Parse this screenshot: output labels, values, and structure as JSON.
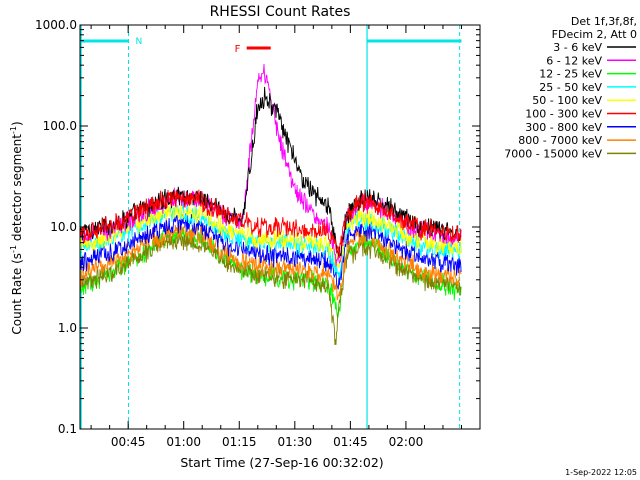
{
  "chart_data": {
    "type": "line",
    "title": "RHESSI Count Rates",
    "xlabel": "Start Time (27-Sep-16 00:32:02)",
    "ylabel_main": "Count Rate (s",
    "ylabel_exp": "-1",
    "ylabel_tail": " detector segment",
    "ylabel_exp2": "-1",
    "ylabel_close": ")",
    "xlim_minutes": [
      0,
      108
    ],
    "yscale": "log",
    "ylim": [
      0.1,
      1000
    ],
    "y_ticks": [
      {
        "value": 0.1,
        "label": "0.1"
      },
      {
        "value": 1,
        "label": "1.0"
      },
      {
        "value": 10,
        "label": "10.0"
      },
      {
        "value": 100,
        "label": "100.0"
      },
      {
        "value": 1000,
        "label": "1000.0"
      }
    ],
    "x_ticks": [
      {
        "value": 13,
        "label": "00:45"
      },
      {
        "value": 28,
        "label": "01:00"
      },
      {
        "value": 43,
        "label": "01:15"
      },
      {
        "value": 58,
        "label": "01:30"
      },
      {
        "value": 73,
        "label": "01:45"
      },
      {
        "value": 88,
        "label": "02:00"
      }
    ],
    "legend_header": [
      "Det 1f,3f,8f,",
      "FDecim 2, Att 0"
    ],
    "series": [
      {
        "name": "3 - 6 keV",
        "color": "#000000",
        "points": [
          [
            0,
            8.8
          ],
          [
            10,
            11
          ],
          [
            20,
            17
          ],
          [
            27,
            21
          ],
          [
            33,
            19
          ],
          [
            40,
            13
          ],
          [
            44,
            12
          ],
          [
            46,
            40
          ],
          [
            48,
            160
          ],
          [
            50,
            200
          ],
          [
            53,
            140
          ],
          [
            56,
            70
          ],
          [
            60,
            30
          ],
          [
            64,
            20
          ],
          [
            67,
            16
          ],
          [
            70,
            5
          ],
          [
            72,
            13
          ],
          [
            76,
            19
          ],
          [
            80,
            18
          ],
          [
            86,
            14
          ],
          [
            92,
            10
          ],
          [
            103,
            8.5
          ]
        ]
      },
      {
        "name": "6 - 12 keV",
        "color": "#ff00ff",
        "points": [
          [
            0,
            7.8
          ],
          [
            10,
            10
          ],
          [
            20,
            16
          ],
          [
            27,
            20
          ],
          [
            33,
            18
          ],
          [
            40,
            12
          ],
          [
            44,
            11
          ],
          [
            46,
            60
          ],
          [
            48,
            270
          ],
          [
            49.5,
            370
          ],
          [
            51,
            250
          ],
          [
            53,
            100
          ],
          [
            56,
            40
          ],
          [
            59,
            20
          ],
          [
            62,
            15
          ],
          [
            65,
            12
          ],
          [
            67,
            10
          ],
          [
            70,
            4
          ],
          [
            72,
            12
          ],
          [
            76,
            17
          ],
          [
            80,
            16
          ],
          [
            86,
            12
          ],
          [
            92,
            9
          ],
          [
            103,
            7.5
          ]
        ]
      },
      {
        "name": "12 - 25 keV",
        "color": "#00ff00",
        "points": [
          [
            0,
            2.4
          ],
          [
            8,
            3.6
          ],
          [
            20,
            6.4
          ],
          [
            27,
            8.8
          ],
          [
            33,
            7.5
          ],
          [
            40,
            4.5
          ],
          [
            47,
            3.3
          ],
          [
            55,
            3.1
          ],
          [
            62,
            3.0
          ],
          [
            67,
            2.6
          ],
          [
            70,
            1.4
          ],
          [
            72,
            5.5
          ],
          [
            76,
            7.5
          ],
          [
            80,
            6.5
          ],
          [
            86,
            4.3
          ],
          [
            92,
            3.2
          ],
          [
            103,
            2.3
          ]
        ]
      },
      {
        "name": "25 - 50 keV",
        "color": "#00ffff",
        "points": [
          [
            0,
            6.0
          ],
          [
            10,
            8.2
          ],
          [
            20,
            12
          ],
          [
            27,
            14
          ],
          [
            33,
            12.5
          ],
          [
            40,
            8.5
          ],
          [
            48,
            7.0
          ],
          [
            56,
            6.8
          ],
          [
            64,
            6.3
          ],
          [
            67,
            6.0
          ],
          [
            70,
            3.6
          ],
          [
            72,
            9.8
          ],
          [
            76,
            12
          ],
          [
            80,
            11
          ],
          [
            86,
            8.5
          ],
          [
            92,
            6.6
          ],
          [
            103,
            5.6
          ]
        ]
      },
      {
        "name": "50 - 100 keV",
        "color": "#ffff00",
        "points": [
          [
            0,
            6.4
          ],
          [
            10,
            8.8
          ],
          [
            20,
            13
          ],
          [
            27,
            15
          ],
          [
            33,
            13.5
          ],
          [
            40,
            9.2
          ],
          [
            48,
            7.6
          ],
          [
            56,
            7.4
          ],
          [
            64,
            6.9
          ],
          [
            67,
            6.6
          ],
          [
            70,
            4.0
          ],
          [
            72,
            10.5
          ],
          [
            76,
            13
          ],
          [
            80,
            12
          ],
          [
            86,
            9.2
          ],
          [
            92,
            7.2
          ],
          [
            103,
            6.1
          ]
        ]
      },
      {
        "name": "100 - 300 keV",
        "color": "#ff0000",
        "points": [
          [
            0,
            8.3
          ],
          [
            10,
            11
          ],
          [
            20,
            17
          ],
          [
            27,
            20
          ],
          [
            33,
            18
          ],
          [
            40,
            12.5
          ],
          [
            48,
            10
          ],
          [
            56,
            10
          ],
          [
            64,
            9.4
          ],
          [
            67,
            9
          ],
          [
            70,
            5.6
          ],
          [
            72,
            14
          ],
          [
            76,
            18
          ],
          [
            80,
            16
          ],
          [
            86,
            12
          ],
          [
            92,
            9.6
          ],
          [
            103,
            8.1
          ]
        ]
      },
      {
        "name": "300 - 800 keV",
        "color": "#0000ff",
        "points": [
          [
            0,
            4.3
          ],
          [
            10,
            6.0
          ],
          [
            20,
            9.4
          ],
          [
            27,
            11
          ],
          [
            33,
            9.9
          ],
          [
            40,
            6.5
          ],
          [
            48,
            5.3
          ],
          [
            56,
            5.1
          ],
          [
            64,
            4.8
          ],
          [
            67,
            4.6
          ],
          [
            70,
            2.9
          ],
          [
            72,
            7.8
          ],
          [
            76,
            9.7
          ],
          [
            80,
            8.8
          ],
          [
            86,
            6.3
          ],
          [
            92,
            4.9
          ],
          [
            103,
            4.2
          ]
        ]
      },
      {
        "name": "800 - 7000 keV",
        "color": "#ff8000",
        "points": [
          [
            0,
            3.2
          ],
          [
            10,
            4.7
          ],
          [
            20,
            7.8
          ],
          [
            27,
            9.5
          ],
          [
            33,
            8.3
          ],
          [
            40,
            5.2
          ],
          [
            48,
            4.1
          ],
          [
            56,
            3.9
          ],
          [
            64,
            3.6
          ],
          [
            67,
            3.4
          ],
          [
            70,
            2.0
          ],
          [
            72,
            6.4
          ],
          [
            76,
            8.1
          ],
          [
            80,
            7.2
          ],
          [
            86,
            5.0
          ],
          [
            92,
            3.7
          ],
          [
            103,
            3.1
          ]
        ]
      },
      {
        "name": "7000 - 15000 keV",
        "color": "#808000",
        "points": [
          [
            0,
            2.6
          ],
          [
            10,
            3.8
          ],
          [
            20,
            6.3
          ],
          [
            27,
            7.7
          ],
          [
            33,
            6.8
          ],
          [
            40,
            4.2
          ],
          [
            48,
            3.3
          ],
          [
            56,
            3.1
          ],
          [
            64,
            2.9
          ],
          [
            67,
            2.7
          ],
          [
            69,
            0.75
          ],
          [
            70,
            1.6
          ],
          [
            72,
            5.1
          ],
          [
            76,
            6.6
          ],
          [
            80,
            5.8
          ],
          [
            86,
            4.0
          ],
          [
            92,
            3.0
          ],
          [
            103,
            2.5
          ]
        ]
      }
    ],
    "annotations": {
      "night_label": "N",
      "flare_label": "F",
      "night_color": "#00e5e5",
      "flare_color": "#ff0000",
      "night_intervals": [
        [
          0.3,
          13.1
        ],
        [
          77.5,
          103
        ]
      ],
      "night_dashed_edges": [
        13.1,
        102.5
      ],
      "night_solid_edges": [
        0.3,
        77.5
      ],
      "flare_interval": [
        45,
        51.5
      ]
    },
    "footer_timestamp": "1-Sep-2022 12:05"
  }
}
